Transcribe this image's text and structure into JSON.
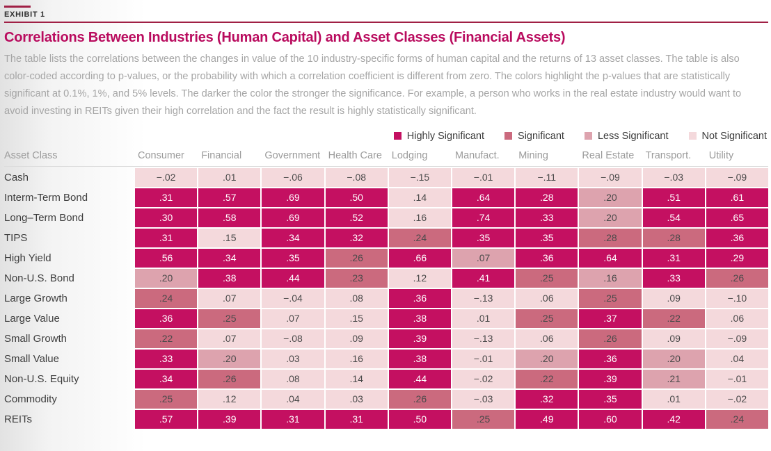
{
  "exhibit": {
    "label": "EXHIBIT 1"
  },
  "title": "Correlations Between Industries (Human Capital) and Asset Classes (Financial Assets)",
  "description": "The table lists the correlations between the changes in value of the 10 industry-specific forms of human capital and the returns of 13 asset classes. The table is also color-coded according to p-values, or the probability with which a correlation coefficient is different from zero. The colors highlight the p-values that are statistically significant at 0.1%, 1%, and 5% levels. The darker the color the stronger the significance. For example, a person who works in the real estate industry would want to avoid investing in REITs given their high correlation and the fact the result is highly statistically significant.",
  "colors": {
    "hs": "#c41061",
    "s": "#cb6a7e",
    "ls": "#dda3ae",
    "ns": "#f4d9dc",
    "rule": "#a02045",
    "title": "#b90b5e"
  },
  "legend": [
    {
      "label": "Highly Significant",
      "level": "hs"
    },
    {
      "label": "Significant",
      "level": "s"
    },
    {
      "label": "Less Significant",
      "level": "ls"
    },
    {
      "label": "Not Significant",
      "level": "ns"
    }
  ],
  "table": {
    "header": [
      "Asset Class",
      "Consumer",
      "Financial",
      "Government",
      "Health Care",
      "Lodging",
      "Manufact.",
      "Mining",
      "Real Estate",
      "Transport.",
      "Utility"
    ],
    "rows": [
      {
        "label": "Cash",
        "cells": [
          {
            "v": "−.02",
            "sig": "ns"
          },
          {
            "v": ".01",
            "sig": "ns"
          },
          {
            "v": "−.06",
            "sig": "ns"
          },
          {
            "v": "−.08",
            "sig": "ns"
          },
          {
            "v": "−.15",
            "sig": "ns"
          },
          {
            "v": "−.01",
            "sig": "ns"
          },
          {
            "v": "−.11",
            "sig": "ns"
          },
          {
            "v": "−.09",
            "sig": "ns"
          },
          {
            "v": "−.03",
            "sig": "ns"
          },
          {
            "v": "−.09",
            "sig": "ns"
          }
        ]
      },
      {
        "label": "Interm-Term Bond",
        "cells": [
          {
            "v": ".31",
            "sig": "hs"
          },
          {
            "v": ".57",
            "sig": "hs"
          },
          {
            "v": ".69",
            "sig": "hs"
          },
          {
            "v": ".50",
            "sig": "hs"
          },
          {
            "v": ".14",
            "sig": "ns"
          },
          {
            "v": ".64",
            "sig": "hs"
          },
          {
            "v": ".28",
            "sig": "hs"
          },
          {
            "v": ".20",
            "sig": "ls"
          },
          {
            "v": ".51",
            "sig": "hs"
          },
          {
            "v": ".61",
            "sig": "hs"
          }
        ]
      },
      {
        "label": "Long–Term Bond",
        "cells": [
          {
            "v": ".30",
            "sig": "hs"
          },
          {
            "v": ".58",
            "sig": "hs"
          },
          {
            "v": ".69",
            "sig": "hs"
          },
          {
            "v": ".52",
            "sig": "hs"
          },
          {
            "v": ".16",
            "sig": "ns"
          },
          {
            "v": ".74",
            "sig": "hs"
          },
          {
            "v": ".33",
            "sig": "hs"
          },
          {
            "v": ".20",
            "sig": "ls"
          },
          {
            "v": ".54",
            "sig": "hs"
          },
          {
            "v": ".65",
            "sig": "hs"
          }
        ]
      },
      {
        "label": "TIPS",
        "cells": [
          {
            "v": ".31",
            "sig": "hs"
          },
          {
            "v": ".15",
            "sig": "ns"
          },
          {
            "v": ".34",
            "sig": "hs"
          },
          {
            "v": ".32",
            "sig": "hs"
          },
          {
            "v": ".24",
            "sig": "s"
          },
          {
            "v": ".35",
            "sig": "hs"
          },
          {
            "v": ".35",
            "sig": "hs"
          },
          {
            "v": ".28",
            "sig": "s"
          },
          {
            "v": ".28",
            "sig": "s"
          },
          {
            "v": ".36",
            "sig": "hs"
          }
        ]
      },
      {
        "label": "High Yield",
        "cells": [
          {
            "v": ".56",
            "sig": "hs"
          },
          {
            "v": ".34",
            "sig": "hs"
          },
          {
            "v": ".35",
            "sig": "hs"
          },
          {
            "v": ".26",
            "sig": "s"
          },
          {
            "v": ".66",
            "sig": "hs"
          },
          {
            "v": ".07",
            "sig": "ls"
          },
          {
            "v": ".36",
            "sig": "hs"
          },
          {
            "v": ".64",
            "sig": "hs"
          },
          {
            "v": ".31",
            "sig": "hs"
          },
          {
            "v": ".29",
            "sig": "hs"
          }
        ]
      },
      {
        "label": "Non-U.S. Bond",
        "cells": [
          {
            "v": ".20",
            "sig": "ls"
          },
          {
            "v": ".38",
            "sig": "hs"
          },
          {
            "v": ".44",
            "sig": "hs"
          },
          {
            "v": ".23",
            "sig": "s"
          },
          {
            "v": ".12",
            "sig": "ns"
          },
          {
            "v": ".41",
            "sig": "hs"
          },
          {
            "v": ".25",
            "sig": "s"
          },
          {
            "v": ".16",
            "sig": "ls"
          },
          {
            "v": ".33",
            "sig": "hs"
          },
          {
            "v": ".26",
            "sig": "s"
          }
        ]
      },
      {
        "label": "Large Growth",
        "cells": [
          {
            "v": ".24",
            "sig": "s"
          },
          {
            "v": ".07",
            "sig": "ns"
          },
          {
            "v": "−.04",
            "sig": "ns"
          },
          {
            "v": ".08",
            "sig": "ns"
          },
          {
            "v": ".36",
            "sig": "hs"
          },
          {
            "v": "−.13",
            "sig": "ns"
          },
          {
            "v": ".06",
            "sig": "ns"
          },
          {
            "v": ".25",
            "sig": "s"
          },
          {
            "v": ".09",
            "sig": "ns"
          },
          {
            "v": "−.10",
            "sig": "ns"
          }
        ]
      },
      {
        "label": "Large Value",
        "cells": [
          {
            "v": ".36",
            "sig": "hs"
          },
          {
            "v": ".25",
            "sig": "s"
          },
          {
            "v": ".07",
            "sig": "ns"
          },
          {
            "v": ".15",
            "sig": "ns"
          },
          {
            "v": ".38",
            "sig": "hs"
          },
          {
            "v": ".01",
            "sig": "ns"
          },
          {
            "v": ".25",
            "sig": "s"
          },
          {
            "v": ".37",
            "sig": "hs"
          },
          {
            "v": ".22",
            "sig": "s"
          },
          {
            "v": ".06",
            "sig": "ns"
          }
        ]
      },
      {
        "label": "Small Growth",
        "cells": [
          {
            "v": ".22",
            "sig": "s"
          },
          {
            "v": ".07",
            "sig": "ns"
          },
          {
            "v": "−.08",
            "sig": "ns"
          },
          {
            "v": ".09",
            "sig": "ns"
          },
          {
            "v": ".39",
            "sig": "hs"
          },
          {
            "v": "−.13",
            "sig": "ns"
          },
          {
            "v": ".06",
            "sig": "ns"
          },
          {
            "v": ".26",
            "sig": "s"
          },
          {
            "v": ".09",
            "sig": "ns"
          },
          {
            "v": "−.09",
            "sig": "ns"
          }
        ]
      },
      {
        "label": "Small Value",
        "cells": [
          {
            "v": ".33",
            "sig": "hs"
          },
          {
            "v": ".20",
            "sig": "ls"
          },
          {
            "v": ".03",
            "sig": "ns"
          },
          {
            "v": ".16",
            "sig": "ns"
          },
          {
            "v": ".38",
            "sig": "hs"
          },
          {
            "v": "−.01",
            "sig": "ns"
          },
          {
            "v": ".20",
            "sig": "ls"
          },
          {
            "v": ".36",
            "sig": "hs"
          },
          {
            "v": ".20",
            "sig": "ls"
          },
          {
            "v": ".04",
            "sig": "ns"
          }
        ]
      },
      {
        "label": "Non-U.S. Equity",
        "cells": [
          {
            "v": ".34",
            "sig": "hs"
          },
          {
            "v": ".26",
            "sig": "s"
          },
          {
            "v": ".08",
            "sig": "ns"
          },
          {
            "v": ".14",
            "sig": "ns"
          },
          {
            "v": ".44",
            "sig": "hs"
          },
          {
            "v": "−.02",
            "sig": "ns"
          },
          {
            "v": ".22",
            "sig": "s"
          },
          {
            "v": ".39",
            "sig": "hs"
          },
          {
            "v": ".21",
            "sig": "ls"
          },
          {
            "v": "−.01",
            "sig": "ns"
          }
        ]
      },
      {
        "label": "Commodity",
        "cells": [
          {
            "v": ".25",
            "sig": "s"
          },
          {
            "v": ".12",
            "sig": "ns"
          },
          {
            "v": ".04",
            "sig": "ns"
          },
          {
            "v": ".03",
            "sig": "ns"
          },
          {
            "v": ".26",
            "sig": "s"
          },
          {
            "v": "−.03",
            "sig": "ns"
          },
          {
            "v": ".32",
            "sig": "hs"
          },
          {
            "v": ".35",
            "sig": "hs"
          },
          {
            "v": ".01",
            "sig": "ns"
          },
          {
            "v": "−.02",
            "sig": "ns"
          }
        ]
      },
      {
        "label": "REITs",
        "cells": [
          {
            "v": ".57",
            "sig": "hs"
          },
          {
            "v": ".39",
            "sig": "hs"
          },
          {
            "v": ".31",
            "sig": "hs"
          },
          {
            "v": ".31",
            "sig": "hs"
          },
          {
            "v": ".50",
            "sig": "hs"
          },
          {
            "v": ".25",
            "sig": "s"
          },
          {
            "v": ".49",
            "sig": "hs"
          },
          {
            "v": ".60",
            "sig": "hs"
          },
          {
            "v": ".42",
            "sig": "hs"
          },
          {
            "v": ".24",
            "sig": "s"
          }
        ]
      }
    ]
  }
}
